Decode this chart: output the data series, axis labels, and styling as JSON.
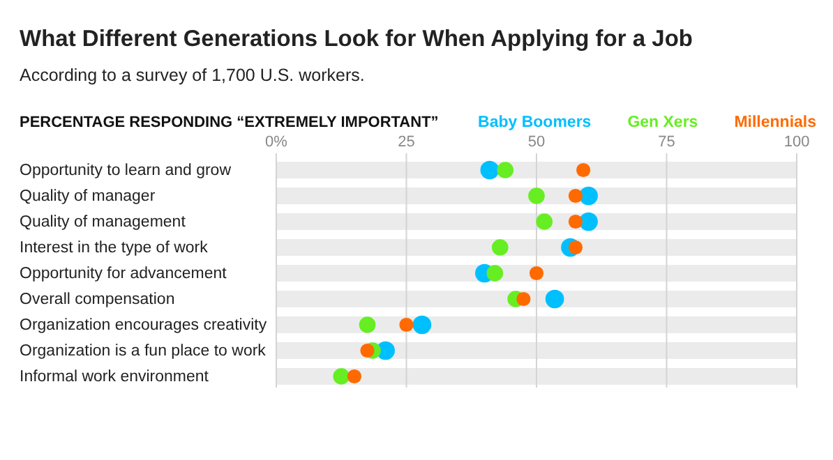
{
  "chart_data": {
    "type": "scatter",
    "title": "What Different Generations Look for When Applying for a Job",
    "subtitle": "According to a survey of 1,700 U.S. workers.",
    "xlabel": "PERCENTAGE RESPONDING “EXTREMELY IMPORTANT”",
    "orientation": "horizontal",
    "categories": [
      "Opportunity to learn and grow",
      "Quality of manager",
      "Quality of management",
      "Interest in the type of work",
      "Opportunity for advancement",
      "Overall compensation",
      "Organization encourages creativity",
      "Organization is a fun place to work",
      "Informal work environment"
    ],
    "bands": [
      {
        "axis": "y",
        "from": "Opportunity to learn and grow",
        "to": "Opportunity to learn and grow",
        "color": "#ebebeb"
      },
      {
        "axis": "y",
        "from": "Quality of manager",
        "to": "Quality of manager",
        "color": "#ebebeb"
      },
      {
        "axis": "y",
        "from": "Quality of management",
        "to": "Quality of management",
        "color": "#ebebeb"
      },
      {
        "axis": "y",
        "from": "Interest in the type of work",
        "to": "Interest in the type of work",
        "color": "#ebebeb"
      },
      {
        "axis": "y",
        "from": "Opportunity for advancement",
        "to": "Opportunity for advancement",
        "color": "#ebebeb"
      },
      {
        "axis": "y",
        "from": "Overall compensation",
        "to": "Overall compensation",
        "color": "#ebebeb"
      },
      {
        "axis": "y",
        "from": "Organization encourages creativity",
        "to": "Organization encourages creativity",
        "color": "#ebebeb"
      },
      {
        "axis": "y",
        "from": "Organization is a fun place to work",
        "to": "Organization is a fun place to work",
        "color": "#ebebeb"
      },
      {
        "axis": "y",
        "from": "Informal work environment",
        "to": "Informal work environment",
        "color": "#ebebeb"
      }
    ],
    "xlim": [
      0,
      100
    ],
    "xticks": [
      {
        "value": 0,
        "label": "0%"
      },
      25,
      50,
      75,
      100
    ],
    "grid": "x",
    "legend": "top right",
    "marker": "circle",
    "series": [
      {
        "name": "Baby Boomers",
        "color": "#00bfff",
        "values": [
          41,
          60,
          60,
          56.5,
          40,
          53.5,
          28,
          21,
          null
        ]
      },
      {
        "name": "Gen Xers",
        "color": "#66ee22",
        "values": [
          44,
          50,
          51.5,
          43,
          42,
          46,
          17.5,
          18.5,
          12.5
        ]
      },
      {
        "name": "Millennials",
        "color": "#ff6a00",
        "values": [
          59,
          57.5,
          57.5,
          57.5,
          50,
          47.5,
          25,
          17.5,
          15
        ]
      }
    ]
  }
}
